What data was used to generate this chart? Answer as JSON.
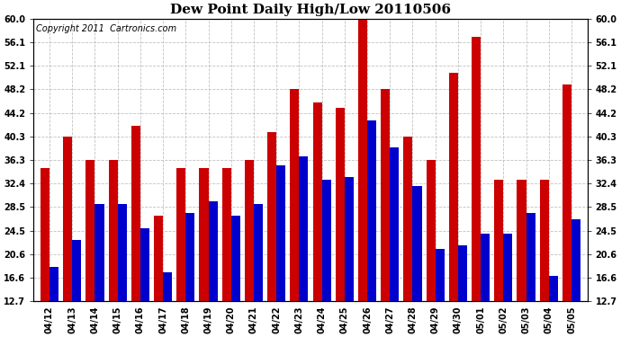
{
  "title": "Dew Point Daily High/Low 20110506",
  "copyright": "Copyright 2011  Cartronics.com",
  "categories": [
    "04/12",
    "04/13",
    "04/14",
    "04/15",
    "04/16",
    "04/17",
    "04/18",
    "04/19",
    "04/20",
    "04/21",
    "04/22",
    "04/23",
    "04/24",
    "04/25",
    "04/26",
    "04/27",
    "04/28",
    "04/29",
    "04/30",
    "05/01",
    "05/02",
    "05/03",
    "05/04",
    "05/05"
  ],
  "highs": [
    35.0,
    40.3,
    36.3,
    36.3,
    42.0,
    27.0,
    35.0,
    35.0,
    35.0,
    36.3,
    41.0,
    48.2,
    46.0,
    45.0,
    60.0,
    48.2,
    40.3,
    36.3,
    51.0,
    57.0,
    33.0,
    33.0,
    33.0,
    49.0
  ],
  "lows": [
    18.5,
    23.0,
    29.0,
    29.0,
    25.0,
    17.5,
    27.5,
    29.5,
    27.0,
    29.0,
    35.5,
    37.0,
    33.0,
    33.5,
    43.0,
    38.5,
    32.0,
    21.5,
    22.0,
    24.0,
    24.0,
    27.5,
    17.0,
    26.5
  ],
  "y_ticks": [
    12.7,
    16.6,
    20.6,
    24.5,
    28.5,
    32.4,
    36.3,
    40.3,
    44.2,
    48.2,
    52.1,
    56.1,
    60.0
  ],
  "ymin": 12.7,
  "ymax": 60.0,
  "bar_color_high": "#cc0000",
  "bar_color_low": "#0000cc",
  "background_color": "#ffffff",
  "grid_color": "#bbbbbb",
  "title_fontsize": 11,
  "copyright_fontsize": 7,
  "bar_width": 0.4,
  "figwidth": 6.9,
  "figheight": 3.75,
  "dpi": 100
}
